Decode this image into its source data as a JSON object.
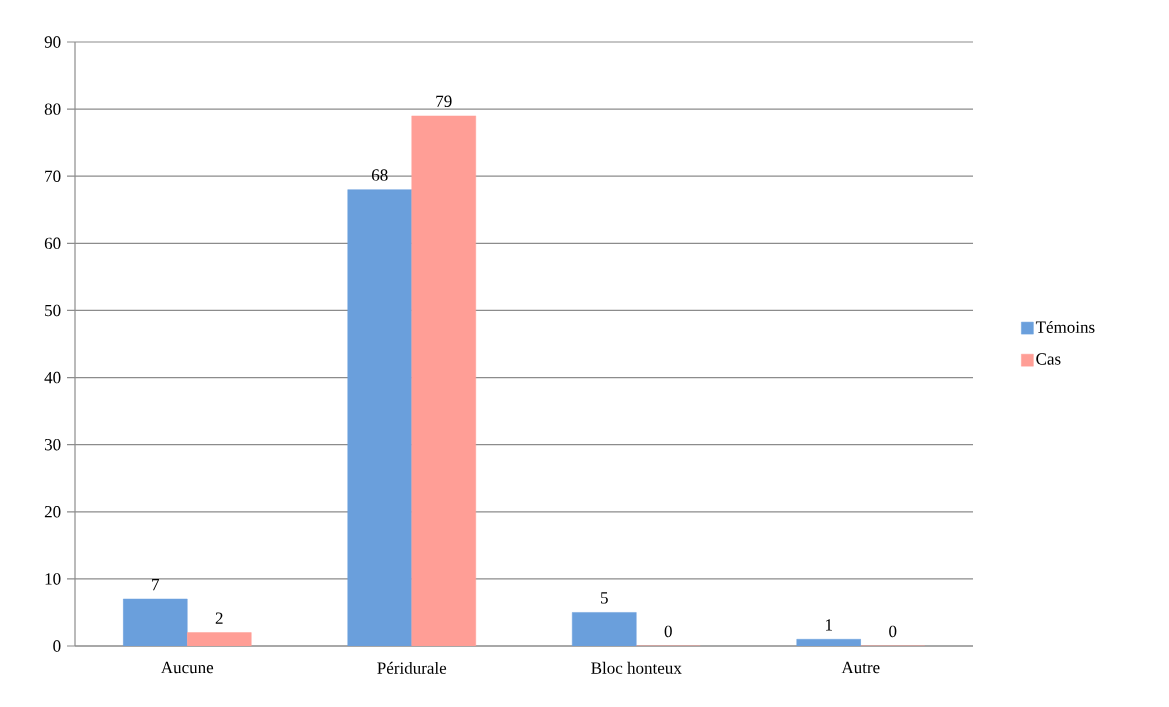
{
  "chart_data": {
    "type": "bar",
    "categories": [
      "Aucune",
      "Péridurale",
      "Bloc honteux",
      "Autre"
    ],
    "series": [
      {
        "name": "Témoins",
        "color": "#6a9fdc",
        "values": [
          7,
          68,
          5,
          1
        ]
      },
      {
        "name": "Cas",
        "color": "#ff9e96",
        "values": [
          2,
          79,
          0,
          0
        ]
      }
    ],
    "ylim": [
      0,
      90
    ],
    "yticks": [
      0,
      10,
      20,
      30,
      40,
      50,
      60,
      70,
      80,
      90
    ],
    "grid": "y",
    "legend": "right",
    "data_labels": true
  }
}
